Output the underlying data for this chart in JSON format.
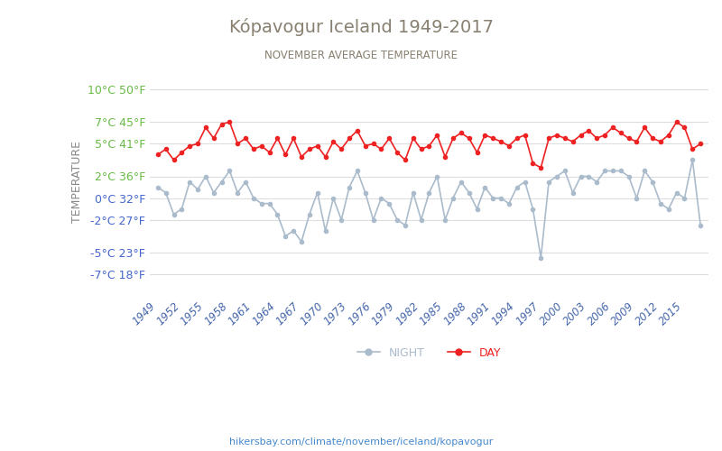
{
  "title": "Kópavogur Iceland 1949-2017",
  "subtitle": "NOVEMBER AVERAGE TEMPERATURE",
  "ylabel": "TEMPERATURE",
  "watermark": "hikersbay.com/climate/november/iceland/kopavogur",
  "title_color": "#888070",
  "subtitle_color": "#888070",
  "bg_color": "#ffffff",
  "grid_color": "#dddddd",
  "ylabel_color": "#888888",
  "ytick_colors_above": "#66bb44",
  "ytick_colors_below": "#4466cc",
  "xticklabel_color": "#4466aa",
  "watermark_color": "#4488cc",
  "legend_night_color": "#aabbcc",
  "legend_day_color": "#ee2222",
  "line_night_color": "#aabbcc",
  "line_day_color": "#ee2222",
  "years": [
    1949,
    1950,
    1951,
    1952,
    1953,
    1954,
    1955,
    1956,
    1957,
    1958,
    1959,
    1960,
    1961,
    1962,
    1963,
    1964,
    1965,
    1966,
    1967,
    1968,
    1969,
    1970,
    1971,
    1972,
    1973,
    1974,
    1975,
    1976,
    1977,
    1978,
    1979,
    1980,
    1981,
    1982,
    1983,
    1984,
    1985,
    1986,
    1987,
    1988,
    1989,
    1990,
    1991,
    1992,
    1993,
    1994,
    1995,
    1996,
    1997,
    1998,
    1999,
    2000,
    2001,
    2002,
    2003,
    2004,
    2005,
    2006,
    2007,
    2008,
    2009,
    2010,
    2011,
    2012,
    2013,
    2014,
    2015,
    2016,
    2017
  ],
  "day": [
    4.0,
    4.5,
    3.5,
    4.2,
    4.8,
    5.0,
    6.5,
    5.5,
    6.8,
    7.0,
    5.0,
    5.5,
    4.5,
    4.8,
    4.2,
    5.5,
    4.0,
    5.5,
    3.8,
    4.5,
    4.8,
    3.8,
    5.2,
    4.5,
    5.5,
    6.2,
    4.8,
    5.0,
    4.5,
    5.5,
    4.2,
    3.5,
    5.5,
    4.5,
    4.8,
    5.8,
    3.8,
    5.5,
    6.0,
    5.5,
    4.2,
    5.8,
    5.5,
    5.2,
    4.8,
    5.5,
    5.8,
    3.2,
    2.8,
    5.5,
    5.8,
    5.5,
    5.2,
    5.8,
    6.2,
    5.5,
    5.8,
    6.5,
    6.0,
    5.5,
    5.2,
    6.5,
    5.5,
    5.2,
    5.8,
    7.0,
    6.5,
    4.5,
    5.0
  ],
  "night": [
    1.0,
    0.5,
    -1.5,
    -1.0,
    1.5,
    0.8,
    2.0,
    0.5,
    1.5,
    2.5,
    0.5,
    1.5,
    0.0,
    -0.5,
    -0.5,
    -1.5,
    -3.5,
    -3.0,
    -4.0,
    -1.5,
    0.5,
    -3.0,
    0.0,
    -2.0,
    1.0,
    2.5,
    0.5,
    -2.0,
    0.0,
    -0.5,
    -2.0,
    -2.5,
    0.5,
    -2.0,
    0.5,
    2.0,
    -2.0,
    0.0,
    1.5,
    0.5,
    -1.0,
    1.0,
    0.0,
    0.0,
    -0.5,
    1.0,
    1.5,
    -1.0,
    -5.5,
    1.5,
    2.0,
    2.5,
    0.5,
    2.0,
    2.0,
    1.5,
    2.5,
    2.5,
    2.5,
    2.0,
    0.0,
    2.5,
    1.5,
    -0.5,
    -1.0,
    0.5,
    0.0,
    3.5,
    -2.5
  ],
  "yticks_c": [
    10,
    7,
    5,
    2,
    0,
    -2,
    -5,
    -7
  ],
  "yticks_f": [
    50,
    45,
    41,
    36,
    32,
    27,
    23,
    18
  ],
  "ylim": [
    -9,
    12
  ],
  "xtick_years": [
    1949,
    1952,
    1955,
    1958,
    1961,
    1964,
    1967,
    1970,
    1973,
    1976,
    1979,
    1982,
    1985,
    1988,
    1991,
    1994,
    1997,
    2000,
    2003,
    2006,
    2009,
    2012,
    2015
  ]
}
